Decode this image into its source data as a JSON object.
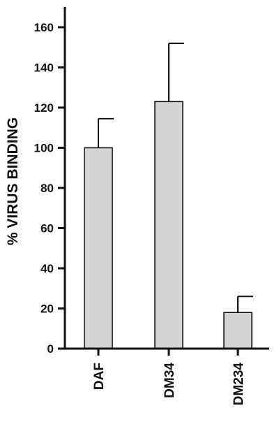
{
  "chart_data": {
    "type": "bar",
    "title": "",
    "xlabel": "",
    "ylabel": "% VIRUS BINDING",
    "categories": [
      "DAF",
      "DM34",
      "DM234"
    ],
    "values": [
      100,
      123,
      18
    ],
    "error_bars": [
      14.5,
      29,
      8
    ],
    "ylim": [
      0,
      170
    ],
    "yticks": [
      0,
      20,
      40,
      60,
      80,
      100,
      120,
      140,
      160
    ],
    "grid": false,
    "legend": "none",
    "bar_fill": "#d3d3d3",
    "bar_stroke": "#111111"
  }
}
